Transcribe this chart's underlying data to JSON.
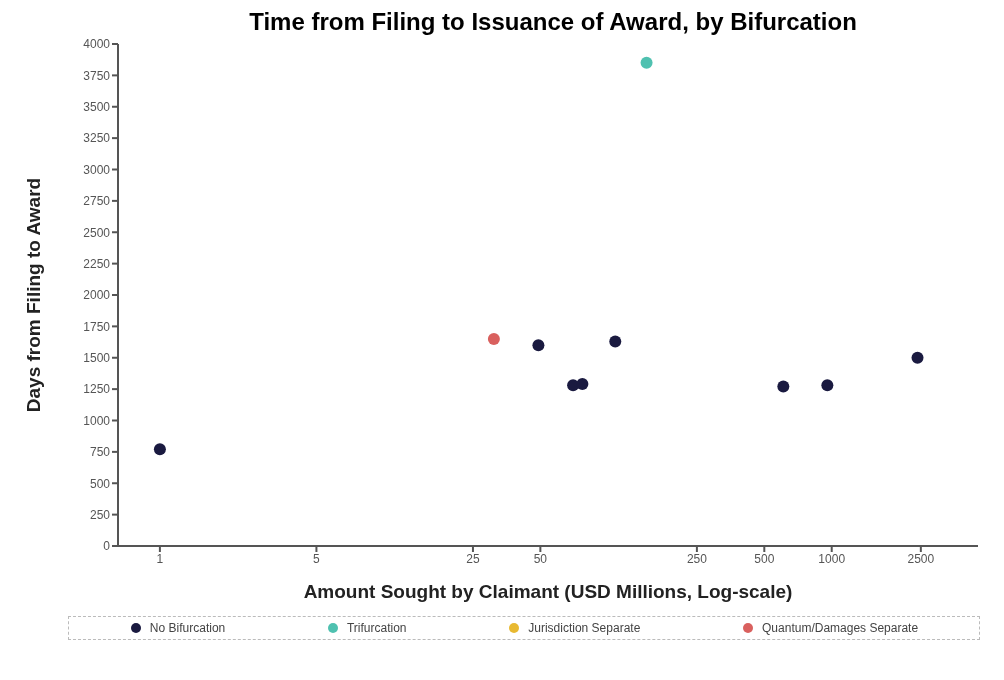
{
  "chart_data": {
    "type": "scatter",
    "title": "Time from Filing to Issuance of Award, by Bifurcation",
    "xlabel": "Amount Sought by Claimant (USD Millions, Log-scale)",
    "ylabel": "Days from Filing to Award",
    "log": "x",
    "xlim": [
      0.65,
      4500
    ],
    "xticks": [
      1,
      5,
      25,
      50,
      250,
      500,
      1000,
      2500
    ],
    "ylim": [
      0,
      4000
    ],
    "yticks": [
      0,
      250,
      500,
      750,
      1000,
      1250,
      1500,
      1750,
      2000,
      2250,
      2500,
      2750,
      3000,
      3250,
      3500,
      3750,
      4000
    ],
    "grid": false,
    "legend": "bottom",
    "marker": "circle",
    "series": [
      {
        "name": "No Bifurcation",
        "color": "#1a1a40",
        "x": [
          1,
          49,
          70,
          77,
          108,
          608,
          956,
          2416
        ],
        "values": [
          770,
          1600,
          1280,
          1290,
          1630,
          1270,
          1280,
          1500
        ]
      },
      {
        "name": "Trifurcation",
        "color": "#4fc1b0",
        "x": [
          149
        ],
        "values": [
          3850
        ]
      },
      {
        "name": "Jurisdiction Separate",
        "color": "#e8b931"
      },
      {
        "name": "Quantum/Damages Separate",
        "color": "#d9605e",
        "x": [
          31
        ],
        "values": [
          1650
        ]
      }
    ]
  }
}
